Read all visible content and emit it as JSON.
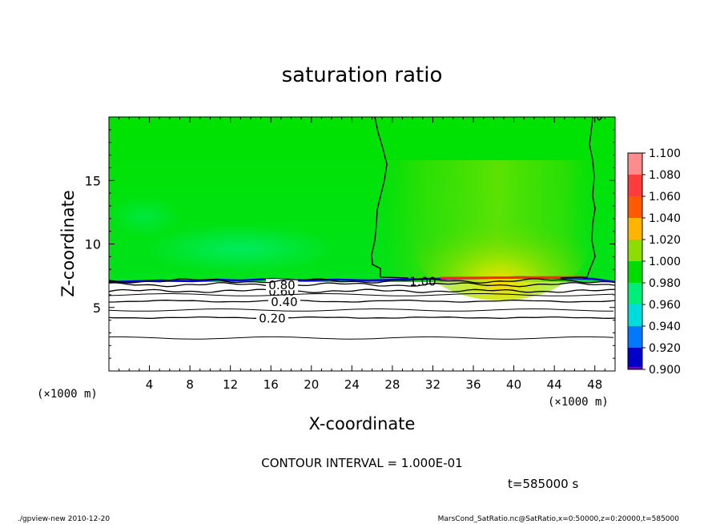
{
  "chart_data": {
    "type": "heatmap",
    "title": "saturation ratio",
    "xlabel": "X-coordinate",
    "ylabel": "Z-coordinate",
    "x_unit_label": "(×1000 m)",
    "x_unit_label_right": "(×1000 m)",
    "xlim": [
      0,
      50
    ],
    "ylim": [
      0,
      20
    ],
    "x_ticks": [
      4,
      8,
      12,
      16,
      20,
      24,
      28,
      32,
      36,
      40,
      44,
      48
    ],
    "y_ticks": [
      5,
      10,
      15
    ],
    "grid": false,
    "colorbar": {
      "position": "right",
      "levels": [
        {
          "label": "1.100",
          "color": "#ff8c8c"
        },
        {
          "label": "1.080",
          "color": "#ff3c3c"
        },
        {
          "label": "1.060",
          "color": "#ff5a00"
        },
        {
          "label": "1.040",
          "color": "#ffb400"
        },
        {
          "label": "1.020",
          "color": "#8cdc00"
        },
        {
          "label": "1.000",
          "color": "#00dc00"
        },
        {
          "label": "0.980",
          "color": "#00ee78"
        },
        {
          "label": "0.960",
          "color": "#00dcdc"
        },
        {
          "label": "0.940",
          "color": "#0078ff"
        },
        {
          "label": "0.920",
          "color": "#0000c8"
        },
        {
          "label": "0.900",
          "color": "#6a0ac8"
        }
      ]
    },
    "field": {
      "saturated_layer_base_z": 7.0,
      "saturated_layer_value_range": [
        0.99,
        1.04
      ],
      "supersaturated_region_x_range": [
        26.5,
        47
      ],
      "max_value_location": {
        "x": 39,
        "z": 7.5
      }
    },
    "contours": [
      {
        "label": "0.20",
        "z": 4.2
      },
      {
        "label": "0.40",
        "z": 5.5
      },
      {
        "label": "0.60",
        "z": 6.3
      },
      {
        "label": "0.80",
        "z": 6.8
      },
      {
        "label": "1.00",
        "z": 7.1
      }
    ],
    "contour_interval_text": "CONTOUR INTERVAL = 1.000E-01",
    "time_text": "t=585000 s"
  },
  "footer": {
    "left": "./gpview-new  2010-12-20",
    "right": "MarsCond_SatRatio.nc@SatRatio,x=0:50000,z=0:20000,t=585000"
  }
}
